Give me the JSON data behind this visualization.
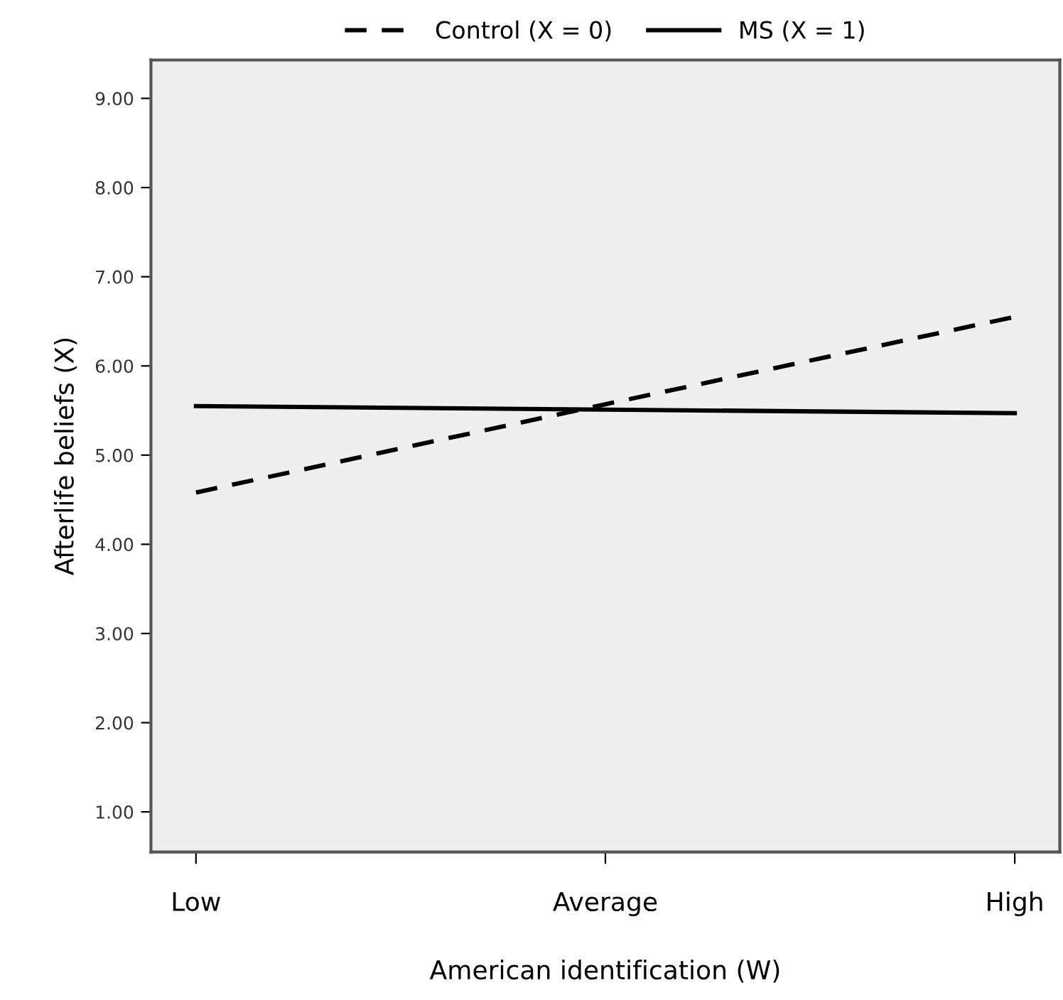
{
  "chart_data": {
    "type": "line",
    "xlabel": "American identification (W)",
    "ylabel": "Afterlife beliefs (X)",
    "categories": [
      "Low",
      "Average",
      "High"
    ],
    "ylim": [
      0.55,
      9.43
    ],
    "yticks": [
      {
        "value": 1,
        "label": "1.00"
      },
      {
        "value": 2,
        "label": "2.00"
      },
      {
        "value": 3,
        "label": "3.00"
      },
      {
        "value": 4,
        "label": "4.00"
      },
      {
        "value": 5,
        "label": "5.00"
      },
      {
        "value": 6,
        "label": "6.00"
      },
      {
        "value": 7,
        "label": "7.00"
      },
      {
        "value": 8,
        "label": "8.00"
      },
      {
        "value": 9,
        "label": "9.00"
      }
    ],
    "series": [
      {
        "name": "Control (X = 0)",
        "color": "#000000",
        "line_style": "dashed",
        "values": [
          4.58,
          5.57,
          6.55
        ]
      },
      {
        "name": "MS (X = 1)",
        "color": "#000000",
        "line_style": "solid",
        "values": [
          5.55,
          5.51,
          5.47
        ]
      }
    ],
    "legend": "top",
    "grid": false,
    "marker": "none"
  }
}
